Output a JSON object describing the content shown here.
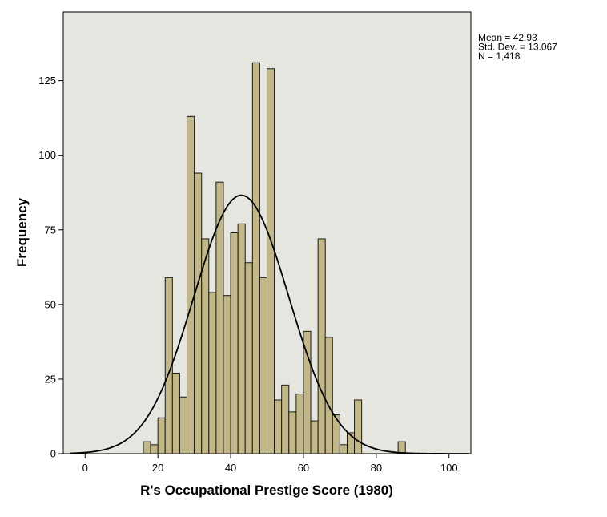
{
  "chart_data": {
    "type": "bar",
    "subtype": "histogram",
    "title": "",
    "xlabel": "R's Occupational Prestige Score (1980)",
    "ylabel": "Frequency",
    "xlim": [
      -6,
      106
    ],
    "ylim": [
      0,
      148
    ],
    "x_ticks": [
      0,
      20,
      40,
      60,
      80,
      100
    ],
    "y_ticks": [
      0,
      25,
      50,
      75,
      100,
      125
    ],
    "bin_width": 2,
    "bins": [
      {
        "start": 16,
        "value": 4
      },
      {
        "start": 18,
        "value": 3
      },
      {
        "start": 20,
        "value": 12
      },
      {
        "start": 22,
        "value": 59
      },
      {
        "start": 24,
        "value": 27
      },
      {
        "start": 26,
        "value": 19
      },
      {
        "start": 28,
        "value": 113
      },
      {
        "start": 30,
        "value": 94
      },
      {
        "start": 32,
        "value": 72
      },
      {
        "start": 34,
        "value": 54
      },
      {
        "start": 36,
        "value": 91
      },
      {
        "start": 38,
        "value": 53
      },
      {
        "start": 40,
        "value": 74
      },
      {
        "start": 42,
        "value": 77
      },
      {
        "start": 44,
        "value": 64
      },
      {
        "start": 46,
        "value": 131
      },
      {
        "start": 48,
        "value": 59
      },
      {
        "start": 50,
        "value": 129
      },
      {
        "start": 52,
        "value": 18
      },
      {
        "start": 54,
        "value": 23
      },
      {
        "start": 56,
        "value": 14
      },
      {
        "start": 58,
        "value": 20
      },
      {
        "start": 60,
        "value": 41
      },
      {
        "start": 62,
        "value": 11
      },
      {
        "start": 64,
        "value": 72
      },
      {
        "start": 66,
        "value": 39
      },
      {
        "start": 68,
        "value": 13
      },
      {
        "start": 70,
        "value": 3
      },
      {
        "start": 72,
        "value": 7
      },
      {
        "start": 74,
        "value": 18
      },
      {
        "start": 86,
        "value": 4
      }
    ],
    "normal_curve": {
      "mean": 42.93,
      "std_dev": 13.067,
      "n": 1418
    },
    "stats_lines": [
      "Mean = 42.93",
      "Std. Dev. = 13.067",
      "N = 1,418"
    ],
    "grid": false,
    "legend": "none",
    "colors": {
      "plot_background": "#e6e6e1",
      "bar_fill": "#c2b887",
      "bar_stroke": "#1a1a1a",
      "curve": "#000000"
    }
  }
}
